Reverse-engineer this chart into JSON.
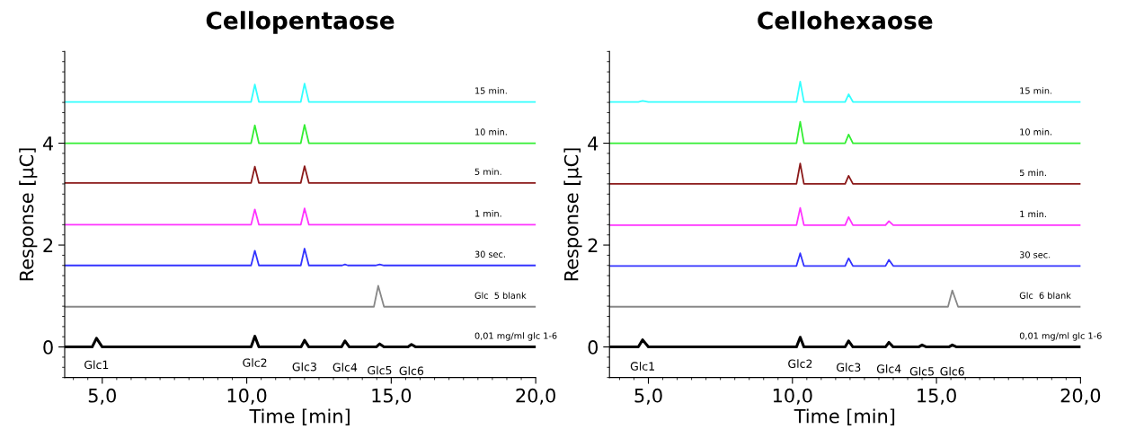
{
  "chart_data": [
    {
      "type": "line",
      "title": "Cellopentaose",
      "xlabel": "Time [min]",
      "ylabel": "Response [µC]",
      "xlim": [
        3.7,
        20
      ],
      "xticks": [
        {
          "value": 5,
          "label": "5,0"
        },
        {
          "value": 10,
          "label": "10,0"
        },
        {
          "value": 15,
          "label": "15,0"
        },
        {
          "value": 20,
          "label": "20,0"
        }
      ],
      "ylim": [
        -0.6,
        5.8
      ],
      "yticks": [
        0,
        2,
        4
      ],
      "grid": false,
      "legend": false,
      "marker": "none",
      "line_style": "solid",
      "series": [
        {
          "name": "15 min.",
          "color": "#33ffff",
          "x": [
            3.7,
            10.15,
            10.28,
            10.42,
            11.87,
            12.0,
            12.15,
            20
          ],
          "values": [
            4.81,
            4.81,
            5.15,
            4.81,
            4.81,
            5.17,
            4.81,
            4.81
          ]
        },
        {
          "name": "10 min.",
          "color": "#33ee33",
          "x": [
            3.7,
            10.15,
            10.28,
            10.42,
            11.87,
            12.0,
            12.15,
            20
          ],
          "values": [
            4.0,
            4.0,
            4.35,
            4.0,
            4.0,
            4.36,
            4.0,
            4.0
          ]
        },
        {
          "name": "5 min.",
          "color": "#8b1a1a",
          "x": [
            3.7,
            10.15,
            10.28,
            10.42,
            11.87,
            12.0,
            12.15,
            20
          ],
          "values": [
            3.22,
            3.22,
            3.54,
            3.22,
            3.22,
            3.55,
            3.22,
            3.22
          ]
        },
        {
          "name": "1 min.",
          "color": "#ff33ff",
          "x": [
            3.7,
            10.15,
            10.28,
            10.42,
            11.87,
            12.0,
            12.15,
            20
          ],
          "values": [
            2.4,
            2.4,
            2.7,
            2.4,
            2.4,
            2.72,
            2.4,
            2.4
          ]
        },
        {
          "name": "30 sec.",
          "color": "#3333ff",
          "x": [
            3.7,
            10.15,
            10.28,
            10.42,
            11.87,
            12.0,
            12.15,
            13.3,
            13.4,
            13.5,
            14.45,
            14.6,
            14.75,
            20
          ],
          "values": [
            1.6,
            1.6,
            1.89,
            1.6,
            1.6,
            1.93,
            1.6,
            1.6,
            1.62,
            1.6,
            1.6,
            1.62,
            1.6,
            1.6
          ]
        },
        {
          "name": "Glc  5 blank",
          "color": "#888888",
          "x": [
            3.7,
            14.4,
            14.55,
            14.75,
            20
          ],
          "values": [
            0.79,
            0.79,
            1.2,
            0.79,
            0.79
          ]
        },
        {
          "name": "0,01 mg/ml glc 1-6",
          "color": "#000000",
          "x": [
            3.7,
            4.65,
            4.8,
            5.0,
            10.15,
            10.28,
            10.42,
            11.88,
            12.0,
            12.15,
            13.28,
            13.4,
            13.55,
            14.48,
            14.6,
            14.75,
            15.58,
            15.7,
            15.85,
            20
          ],
          "values": [
            0,
            0,
            0.17,
            0,
            0,
            0.21,
            0,
            0,
            0.13,
            0,
            0,
            0.12,
            0,
            0,
            0.06,
            0,
            0,
            0.05,
            0,
            0
          ]
        }
      ],
      "annotations": [
        {
          "text": "Glc1",
          "x": 4.8,
          "y": 0.17
        },
        {
          "text": "Glc2",
          "x": 10.28,
          "y": 0.21
        },
        {
          "text": "Glc3",
          "x": 12.0,
          "y": 0.13
        },
        {
          "text": "Glc4",
          "x": 13.4,
          "y": 0.12
        },
        {
          "text": "Glc5",
          "x": 14.6,
          "y": 0.06
        },
        {
          "text": "Glc6",
          "x": 15.7,
          "y": 0.05
        }
      ]
    },
    {
      "type": "line",
      "title": "Cellohexaose",
      "xlabel": "Time [min]",
      "ylabel": "Response [µC]",
      "xlim": [
        3.65,
        20
      ],
      "xticks": [
        {
          "value": 5,
          "label": "5,0"
        },
        {
          "value": 10,
          "label": "10,0"
        },
        {
          "value": 15,
          "label": "15,0"
        },
        {
          "value": 20,
          "label": "20,0"
        }
      ],
      "ylim": [
        -0.6,
        5.8
      ],
      "yticks": [
        0,
        2,
        4
      ],
      "grid": false,
      "legend": false,
      "marker": "none",
      "line_style": "solid",
      "series": [
        {
          "name": "15 min.",
          "color": "#33ffff",
          "x": [
            3.65,
            4.65,
            4.8,
            5.0,
            10.14,
            10.27,
            10.4,
            11.83,
            11.95,
            12.1,
            20
          ],
          "values": [
            4.81,
            4.81,
            4.83,
            4.81,
            4.81,
            5.21,
            4.81,
            4.81,
            4.96,
            4.81,
            4.81
          ]
        },
        {
          "name": "10 min.",
          "color": "#33ee33",
          "x": [
            3.65,
            10.14,
            10.27,
            10.4,
            11.83,
            11.95,
            12.1,
            20
          ],
          "values": [
            4.0,
            4.0,
            4.42,
            4.0,
            4.0,
            4.17,
            4.0,
            4.0
          ]
        },
        {
          "name": "5 min.",
          "color": "#8b1a1a",
          "x": [
            3.65,
            10.14,
            10.27,
            10.4,
            11.83,
            11.95,
            12.1,
            20
          ],
          "values": [
            3.2,
            3.2,
            3.6,
            3.2,
            3.2,
            3.36,
            3.2,
            3.2
          ]
        },
        {
          "name": "1 min.",
          "color": "#ff33ff",
          "x": [
            3.65,
            10.14,
            10.27,
            10.4,
            11.83,
            11.95,
            12.1,
            13.23,
            13.35,
            13.5,
            20
          ],
          "values": [
            2.39,
            2.39,
            2.73,
            2.39,
            2.39,
            2.55,
            2.39,
            2.39,
            2.47,
            2.39,
            2.39
          ]
        },
        {
          "name": "30 sec.",
          "color": "#3333ff",
          "x": [
            3.65,
            10.14,
            10.27,
            10.4,
            11.83,
            11.95,
            12.1,
            13.23,
            13.35,
            13.5,
            20
          ],
          "values": [
            1.59,
            1.59,
            1.84,
            1.59,
            1.59,
            1.74,
            1.59,
            1.59,
            1.71,
            1.59,
            1.59
          ]
        },
        {
          "name": "Glc  6 blank",
          "color": "#888888",
          "x": [
            3.65,
            15.4,
            15.55,
            15.75,
            20
          ],
          "values": [
            0.79,
            0.79,
            1.11,
            0.79,
            0.79
          ]
        },
        {
          "name": "0,01 mg/ml glc 1-6",
          "color": "#000000",
          "x": [
            3.65,
            4.65,
            4.8,
            5.0,
            10.14,
            10.27,
            10.4,
            11.83,
            11.95,
            12.1,
            13.23,
            13.35,
            13.5,
            14.38,
            14.5,
            14.65,
            15.43,
            15.55,
            15.7,
            20
          ],
          "values": [
            0,
            0,
            0.14,
            0,
            0,
            0.19,
            0,
            0,
            0.12,
            0,
            0,
            0.09,
            0,
            0,
            0.04,
            0,
            0,
            0.04,
            0,
            0
          ]
        }
      ],
      "annotations": [
        {
          "text": "Glc1",
          "x": 4.8,
          "y": 0.14
        },
        {
          "text": "Glc2",
          "x": 10.27,
          "y": 0.19
        },
        {
          "text": "Glc3",
          "x": 11.95,
          "y": 0.12
        },
        {
          "text": "Glc4",
          "x": 13.35,
          "y": 0.09
        },
        {
          "text": "Glc5",
          "x": 14.5,
          "y": 0.04
        },
        {
          "text": "Glc6",
          "x": 15.55,
          "y": 0.04
        }
      ]
    }
  ]
}
